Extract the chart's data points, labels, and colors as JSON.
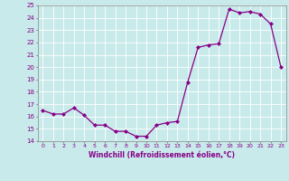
{
  "x": [
    0,
    1,
    2,
    3,
    4,
    5,
    6,
    7,
    8,
    9,
    10,
    11,
    12,
    13,
    14,
    15,
    16,
    17,
    18,
    19,
    20,
    21,
    22,
    23
  ],
  "y": [
    16.5,
    16.2,
    16.2,
    16.7,
    16.1,
    15.3,
    15.3,
    14.8,
    14.8,
    14.4,
    14.4,
    15.3,
    15.5,
    15.6,
    18.8,
    21.6,
    21.8,
    21.9,
    24.7,
    24.4,
    24.5,
    24.3,
    23.5,
    20.0
  ],
  "xlabel": "Windchill (Refroidissement éolien,°C)",
  "ylim": [
    14,
    25
  ],
  "xlim": [
    -0.5,
    23.5
  ],
  "yticks": [
    14,
    15,
    16,
    17,
    18,
    19,
    20,
    21,
    22,
    23,
    24,
    25
  ],
  "xtick_labels": [
    "0",
    "1",
    "2",
    "3",
    "4",
    "5",
    "6",
    "7",
    "8",
    "9",
    "10",
    "11",
    "12",
    "13",
    "14",
    "15",
    "16",
    "17",
    "18",
    "19",
    "20",
    "21",
    "22",
    "23"
  ],
  "line_color": "#880088",
  "marker": "D",
  "bg_color": "#c8eaea",
  "grid_color": "#b0d4d4",
  "spine_color": "#888888"
}
